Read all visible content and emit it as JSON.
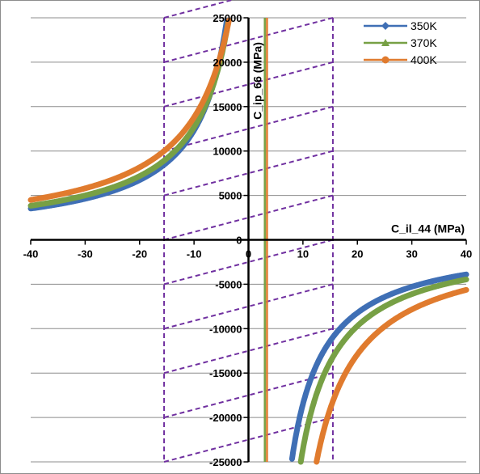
{
  "chart_data": {
    "type": "line",
    "title": "",
    "xlabel": "C_il_44 (MPa)",
    "ylabel": "C_ip_66 (MPa)",
    "xlim": [
      -40,
      40
    ],
    "ylim": [
      -25000,
      25000
    ],
    "x_ticks": [
      "-40",
      "-30",
      "-20",
      "-10",
      "0",
      "10",
      "20",
      "30",
      "40"
    ],
    "y_ticks": [
      "-25000",
      "-20000",
      "-15000",
      "-10000",
      "-5000",
      "0",
      "5000",
      "10000",
      "15000",
      "20000",
      "25000"
    ],
    "grid": "horizontal major gridlines",
    "legend_position": "top-right",
    "series": [
      {
        "name": "350K",
        "color": "#3f6fb5",
        "marker": "diamond",
        "pole": 2.0,
        "k": 148000
      },
      {
        "name": "370K",
        "color": "#77a045",
        "marker": "triangle",
        "pole": 3.0,
        "k": 165000
      },
      {
        "name": "400K",
        "color": "#e07b2e",
        "marker": "circle",
        "pole": 4.5,
        "k": 200000
      }
    ],
    "vertical_lines": [
      {
        "x": 3.0,
        "color": "#77a045"
      },
      {
        "x": 3.4,
        "color": "#e07b2e"
      }
    ],
    "region": {
      "color": "#7030a0",
      "x_bounds": [
        -15.5,
        15.5
      ],
      "hatch_offsets": [
        -25000,
        -20000,
        -15000,
        -10000,
        -5000,
        0,
        5000,
        10000,
        15000,
        20000,
        25000
      ],
      "hatch_rise": 5000,
      "style": "dashed"
    }
  }
}
